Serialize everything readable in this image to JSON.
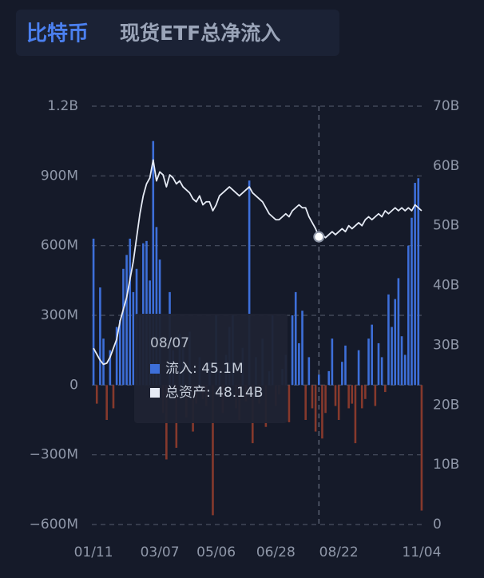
{
  "chart_data": {
    "type": "bar_line",
    "title": "比特币",
    "subtitle": "现货ETF总净流入",
    "categories": [
      "01/11",
      null,
      null,
      null,
      null,
      null,
      null,
      null,
      null,
      null,
      null,
      null,
      null,
      null,
      null,
      null,
      null,
      null,
      null,
      null,
      "03/07",
      null,
      null,
      null,
      null,
      null,
      null,
      null,
      null,
      null,
      null,
      null,
      null,
      null,
      null,
      null,
      null,
      "05/06",
      null,
      null,
      null,
      null,
      null,
      null,
      null,
      null,
      null,
      null,
      null,
      null,
      null,
      null,
      null,
      null,
      null,
      "06/28",
      null,
      null,
      null,
      null,
      null,
      null,
      null,
      null,
      null,
      null,
      null,
      null,
      null,
      null,
      null,
      null,
      null,
      null,
      "08/22",
      null,
      null,
      null,
      null,
      null,
      null,
      null,
      null,
      null,
      null,
      null,
      null,
      null,
      null,
      null,
      null,
      null,
      null,
      null,
      null,
      null,
      null,
      null,
      null,
      "11/04"
    ],
    "series": [
      {
        "color": "#3d6fd9",
        "negative_color": "#86392c",
        "values": [
          630,
          -80,
          420,
          200,
          -150,
          150,
          -100,
          250,
          280,
          500,
          560,
          630,
          400,
          500,
          300,
          610,
          620,
          450,
          1050,
          680,
          540,
          -120,
          -320,
          400,
          150,
          -270,
          220,
          160,
          -140,
          230,
          -200,
          -80,
          120,
          -60,
          -90,
          100,
          -560,
          300,
          60,
          -120,
          130,
          250,
          300,
          -100,
          -150,
          160,
          -70,
          880,
          -250,
          120,
          -80,
          200,
          -180,
          60,
          300,
          -90,
          -40,
          70,
          130,
          -160,
          300,
          400,
          180,
          320,
          -150,
          120,
          -100,
          -200,
          45.1,
          -230,
          -120,
          60,
          200,
          -90,
          -150,
          100,
          170,
          -100,
          -80,
          -250,
          150,
          -100,
          -60,
          200,
          260,
          -90,
          180,
          120,
          -30,
          390,
          250,
          370,
          460,
          210,
          130,
          600,
          720,
          870,
          890,
          -540
        ]
      },
      {
        "color": "#e6ebf5",
        "axis": "y2",
        "values": [
          29.5,
          28.5,
          27.5,
          26.8,
          27.0,
          28.0,
          29.5,
          31,
          34,
          36,
          38,
          41,
          44,
          48,
          52,
          55,
          57,
          58,
          61,
          57.5,
          59,
          58.5,
          56.5,
          58.5,
          58,
          57,
          57.5,
          56.5,
          56,
          55.5,
          54.5,
          54,
          55,
          53.5,
          54,
          54,
          52.5,
          53.5,
          55,
          55.5,
          56,
          56.5,
          56,
          55.5,
          55,
          55.5,
          56,
          56.5,
          55.5,
          55,
          54.5,
          54,
          53,
          52,
          51.5,
          51,
          51,
          51.5,
          52,
          51.5,
          52.5,
          53,
          53.5,
          53,
          53,
          51.5,
          50.5,
          49.5,
          48.14,
          48.5,
          48,
          48.5,
          49,
          48.5,
          49,
          49.5,
          49,
          50,
          49.5,
          50,
          50.5,
          50,
          51,
          51.5,
          51,
          51.5,
          52,
          51.5,
          52.5,
          52,
          52.5,
          53,
          52.5,
          53,
          52.5,
          53,
          52.5,
          53.5,
          53,
          52.5
        ]
      }
    ],
    "ylim": [
      -600,
      1200
    ],
    "yticks": [
      {
        "value": -600,
        "label": "−600M"
      },
      {
        "value": -300,
        "label": "−300M"
      },
      0,
      {
        "value": 300,
        "label": "300M"
      },
      {
        "value": 600,
        "label": "600M"
      },
      {
        "value": 900,
        "label": "900M"
      },
      {
        "value": 1200,
        "label": "1.2B"
      }
    ],
    "y2lim": [
      0,
      70
    ],
    "y2ticks": [
      0,
      {
        "value": 10,
        "label": "10B"
      },
      {
        "value": 20,
        "label": "20B"
      },
      {
        "value": 30,
        "label": "30B"
      },
      {
        "value": 40,
        "label": "40B"
      },
      {
        "value": 50,
        "label": "50B"
      },
      {
        "value": 60,
        "label": "60B"
      },
      {
        "value": 70,
        "label": "70B"
      }
    ],
    "grid": true,
    "tooltip": {
      "index": 68,
      "date": "08/07",
      "rows": [
        "流入: 45.1M",
        "总资产: 48.14B"
      ]
    }
  }
}
